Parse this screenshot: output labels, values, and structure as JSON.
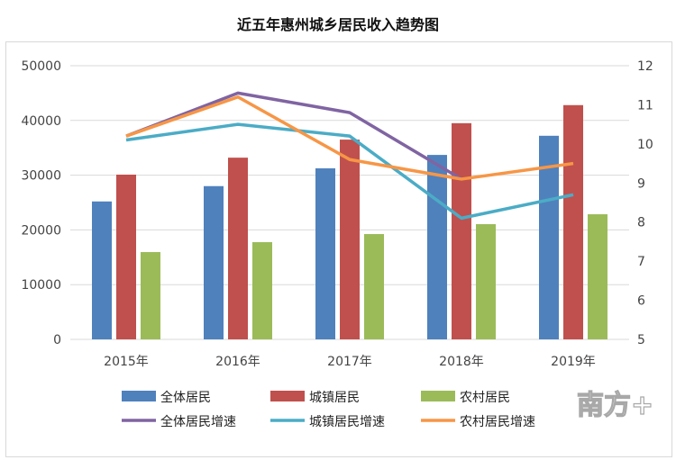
{
  "chart_data": {
    "type": "bar",
    "title": "近五年惠州城乡居民收入趋势图",
    "categories": [
      "2015年",
      "2016年",
      "2017年",
      "2018年",
      "2019年"
    ],
    "left_axis": {
      "ylim": [
        0,
        50000
      ],
      "ticks": [
        "0",
        "10000",
        "20000",
        "30000",
        "40000",
        "50000"
      ]
    },
    "right_axis": {
      "ylim": [
        5,
        12
      ],
      "ticks": [
        "5",
        "6",
        "7",
        "8",
        "9",
        "10",
        "11",
        "12"
      ]
    },
    "grid": true,
    "legend_position": "bottom",
    "bar_series": [
      {
        "name": "全体居民",
        "color": "#4f81bd",
        "values": [
          25200,
          28000,
          31250,
          33700,
          37200
        ]
      },
      {
        "name": "城镇居民",
        "color": "#c0504d",
        "values": [
          30100,
          33200,
          36500,
          39500,
          42800
        ]
      },
      {
        "name": "农村居民",
        "color": "#9bbb59",
        "values": [
          15950,
          17760,
          19240,
          21050,
          22860
        ]
      }
    ],
    "line_series": [
      {
        "name": "全体居民增速",
        "color": "#8064a2",
        "values": [
          10.2,
          11.3,
          10.8,
          9.1,
          null
        ]
      },
      {
        "name": "城镇居民增速",
        "color": "#4bacc6",
        "values": [
          10.1,
          10.5,
          10.2,
          8.1,
          8.7
        ]
      },
      {
        "name": "农村居民增速",
        "color": "#f79646",
        "values": [
          10.2,
          11.2,
          9.6,
          9.1,
          9.5
        ]
      }
    ]
  },
  "watermark": "南方+"
}
